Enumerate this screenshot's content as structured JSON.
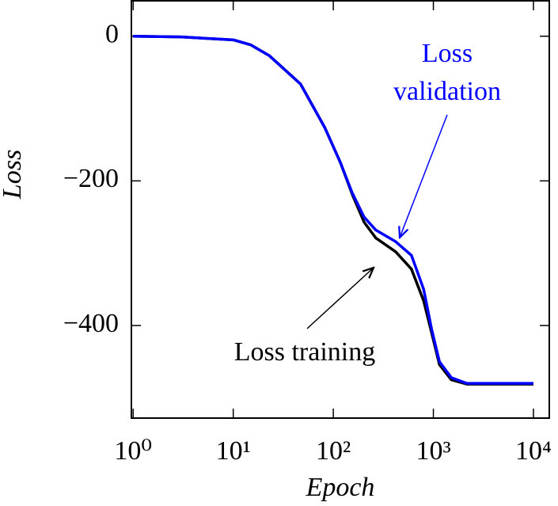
{
  "chart_data": {
    "type": "line",
    "xlabel": "Epoch",
    "ylabel": "Loss",
    "xscale": "log",
    "x": [
      1,
      3,
      10,
      15,
      23,
      47,
      82,
      118,
      155,
      203,
      266,
      420,
      604,
      800,
      960,
      1150,
      1510,
      2160,
      5000,
      10000
    ],
    "series": [
      {
        "name": "Loss training",
        "color": "#000000",
        "values": [
          0,
          -1,
          -5,
          -12,
          -27,
          -66,
          -126,
          -175,
          -219,
          -257,
          -279,
          -298,
          -322,
          -366,
          -410,
          -454,
          -475,
          -481,
          -481,
          -481
        ]
      },
      {
        "name": "Loss validation",
        "color": "#0000ff",
        "values": [
          0,
          -1,
          -5,
          -12,
          -27,
          -66,
          -126,
          -175,
          -217,
          -250,
          -268,
          -284,
          -303,
          -350,
          -405,
          -450,
          -472,
          -480,
          -480,
          -480
        ]
      }
    ],
    "annotations": [
      {
        "lines": [
          "Loss",
          "validation"
        ],
        "color": "#0000ff"
      },
      {
        "lines": [
          "Loss training"
        ],
        "color": "#000000"
      }
    ],
    "xlim": [
      0.96,
      14400
    ],
    "xticks": [
      {
        "value": 1,
        "label": "10⁰"
      },
      {
        "value": 10,
        "label": "10¹"
      },
      {
        "value": 100,
        "label": "10²"
      },
      {
        "value": 1000,
        "label": "10³"
      },
      {
        "value": 10000,
        "label": "10⁴"
      }
    ],
    "ylim": [
      -528,
      49
    ],
    "yticks": [
      {
        "value": 0,
        "label": "0"
      },
      {
        "value": -200,
        "label": "−200"
      },
      {
        "value": -400,
        "label": "−400"
      }
    ]
  }
}
